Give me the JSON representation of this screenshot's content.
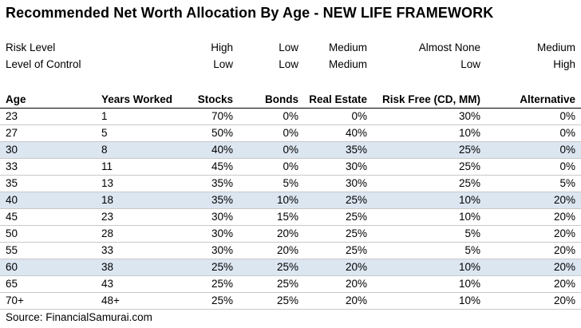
{
  "title": "Recommended Net Worth Allocation By Age - NEW LIFE FRAMEWORK",
  "meta_rows": [
    {
      "label": "Risk Level",
      "stocks": "High",
      "bonds": "Low",
      "real_estate": "Medium",
      "risk_free": "Almost None",
      "alternative": "Medium"
    },
    {
      "label": "Level of Control",
      "stocks": "Low",
      "bonds": "Low",
      "real_estate": "Medium",
      "risk_free": "Low",
      "alternative": "High"
    }
  ],
  "headers": {
    "age": "Age",
    "years_worked": "Years Worked",
    "stocks": "Stocks",
    "bonds": "Bonds",
    "real_estate": "Real Estate",
    "risk_free": "Risk Free (CD, MM)",
    "alternative": "Alternative"
  },
  "rows": [
    {
      "age": "23",
      "years": "1",
      "stocks": "70%",
      "bonds": "0%",
      "real_estate": "0%",
      "risk_free": "30%",
      "alternative": "0%",
      "shaded": false
    },
    {
      "age": "27",
      "years": "5",
      "stocks": "50%",
      "bonds": "0%",
      "real_estate": "40%",
      "risk_free": "10%",
      "alternative": "0%",
      "shaded": false
    },
    {
      "age": "30",
      "years": "8",
      "stocks": "40%",
      "bonds": "0%",
      "real_estate": "35%",
      "risk_free": "25%",
      "alternative": "0%",
      "shaded": true
    },
    {
      "age": "33",
      "years": "11",
      "stocks": "45%",
      "bonds": "0%",
      "real_estate": "30%",
      "risk_free": "25%",
      "alternative": "0%",
      "shaded": false
    },
    {
      "age": "35",
      "years": "13",
      "stocks": "35%",
      "bonds": "5%",
      "real_estate": "30%",
      "risk_free": "25%",
      "alternative": "5%",
      "shaded": false
    },
    {
      "age": "40",
      "years": "18",
      "stocks": "35%",
      "bonds": "10%",
      "real_estate": "25%",
      "risk_free": "10%",
      "alternative": "20%",
      "shaded": true
    },
    {
      "age": "45",
      "years": "23",
      "stocks": "30%",
      "bonds": "15%",
      "real_estate": "25%",
      "risk_free": "10%",
      "alternative": "20%",
      "shaded": false
    },
    {
      "age": "50",
      "years": "28",
      "stocks": "30%",
      "bonds": "20%",
      "real_estate": "25%",
      "risk_free": "5%",
      "alternative": "20%",
      "shaded": false
    },
    {
      "age": "55",
      "years": "33",
      "stocks": "30%",
      "bonds": "20%",
      "real_estate": "25%",
      "risk_free": "5%",
      "alternative": "20%",
      "shaded": false
    },
    {
      "age": "60",
      "years": "38",
      "stocks": "25%",
      "bonds": "25%",
      "real_estate": "20%",
      "risk_free": "10%",
      "alternative": "20%",
      "shaded": true
    },
    {
      "age": "65",
      "years": "43",
      "stocks": "25%",
      "bonds": "25%",
      "real_estate": "20%",
      "risk_free": "10%",
      "alternative": "20%",
      "shaded": false
    },
    {
      "age": "70+",
      "years": "48+",
      "stocks": "25%",
      "bonds": "25%",
      "real_estate": "20%",
      "risk_free": "10%",
      "alternative": "20%",
      "shaded": false
    }
  ],
  "source": "Source: FinancialSamurai.com",
  "colors": {
    "shaded_row": "#dce6f1",
    "gridline": "#c8c8c8"
  }
}
